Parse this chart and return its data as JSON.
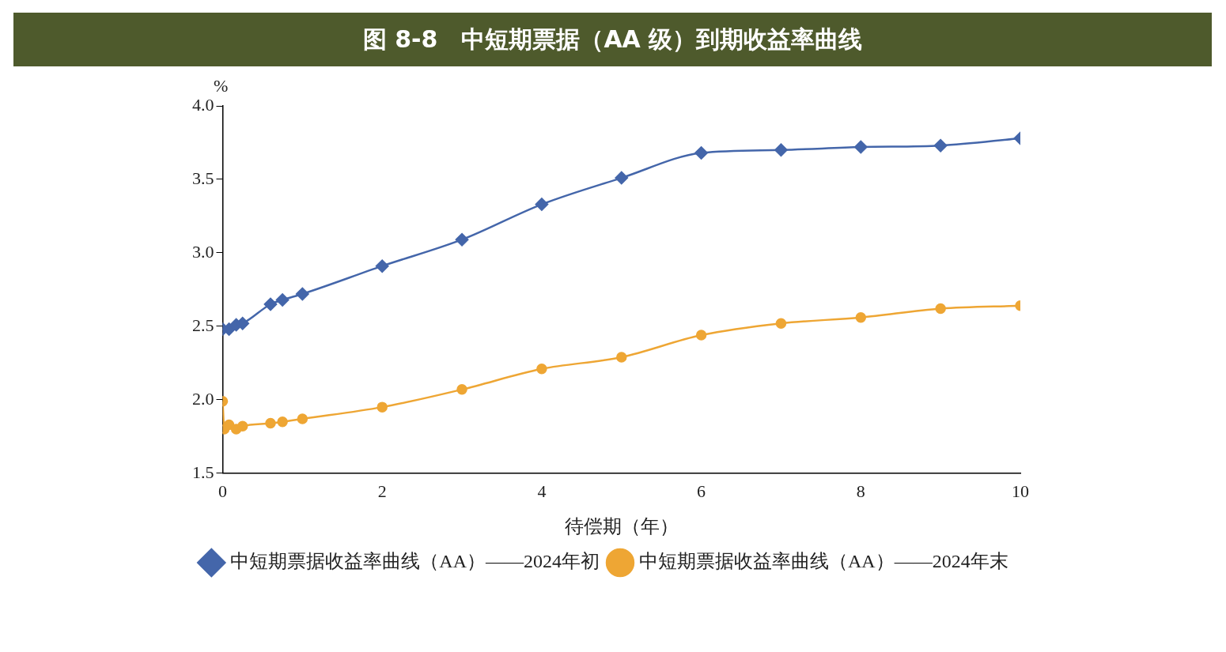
{
  "chart_data": {
    "type": "line",
    "title": "图 8-8　中短期票据（AA 级）到期收益率曲线",
    "xlabel": "待偿期（年）",
    "ylabel": "%",
    "xlim": [
      0,
      10
    ],
    "xticks": [
      0,
      2,
      4,
      6,
      8,
      10
    ],
    "ylim": [
      1.5,
      4.0
    ],
    "yticks": [
      {
        "value": 1.5,
        "label": "1.5"
      },
      {
        "value": 2,
        "label": "2.0"
      },
      {
        "value": 2.5,
        "label": "2.5"
      },
      {
        "value": 3,
        "label": "3.0"
      },
      {
        "value": 3.5,
        "label": "3.5"
      },
      {
        "value": 4,
        "label": "4.0"
      }
    ],
    "grid": false,
    "legend": "bottom",
    "series": [
      {
        "name": "中短期票据收益率曲线（AA）——2024年初",
        "color": "#4466aa",
        "marker": "diamond",
        "x": [
          0,
          0.08,
          0.17,
          0.25,
          0.6,
          0.75,
          1,
          2,
          3,
          4,
          5,
          6,
          7,
          8,
          9,
          10
        ],
        "values": [
          2.48,
          2.48,
          2.51,
          2.52,
          2.65,
          2.68,
          2.72,
          2.91,
          3.09,
          3.33,
          3.51,
          3.68,
          3.7,
          3.72,
          3.73,
          3.78
        ]
      },
      {
        "name": "中短期票据收益率曲线（AA）——2024年末",
        "color": "#eea634",
        "marker": "circle",
        "x": [
          0,
          0.02,
          0.08,
          0.17,
          0.25,
          0.6,
          0.75,
          1,
          2,
          3,
          4,
          5,
          6,
          7,
          8,
          9,
          10
        ],
        "values": [
          1.99,
          1.8,
          1.83,
          1.8,
          1.82,
          1.84,
          1.85,
          1.87,
          1.95,
          2.07,
          2.21,
          2.29,
          2.44,
          2.52,
          2.56,
          2.62,
          2.64
        ]
      }
    ]
  }
}
